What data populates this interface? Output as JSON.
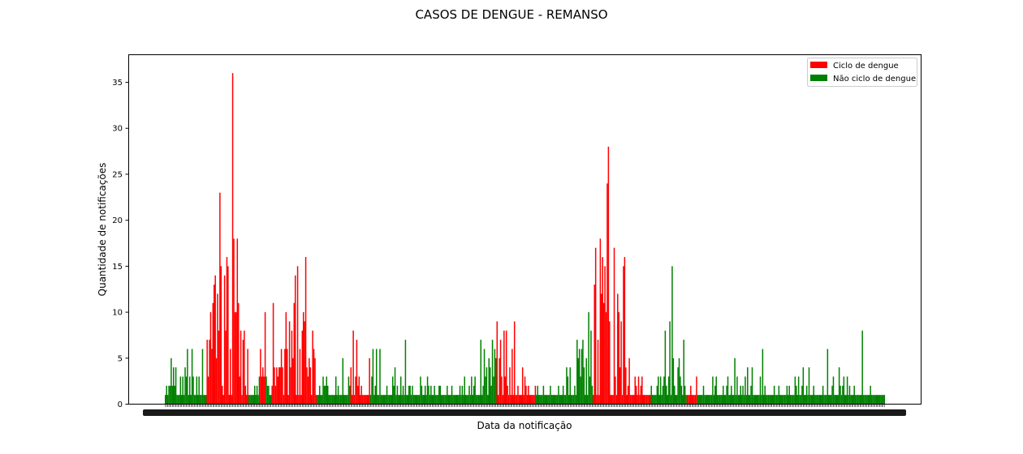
{
  "chart_data": {
    "type": "bar",
    "title": "CASOS DE DENGUE - REMANSO",
    "xlabel": "Data da notificação",
    "ylabel": "Quantidade de notificações",
    "ylim": [
      0,
      38
    ],
    "yticks": [
      0,
      5,
      10,
      15,
      20,
      25,
      30,
      35
    ],
    "grid": false,
    "legend_position": "top-right",
    "series": [
      {
        "name": "Ciclo de dengue",
        "color": "#ff0000"
      },
      {
        "name": "Não ciclo de dengue",
        "color": "#008000"
      }
    ],
    "x_tick_labels_note": "one overlapping, illegible date tick label per bar",
    "values": [
      1,
      2,
      1,
      2,
      2,
      5,
      2,
      4,
      2,
      4,
      1,
      1,
      1,
      3,
      1,
      3,
      1,
      4,
      3,
      6,
      1,
      3,
      1,
      6,
      3,
      1,
      1,
      3,
      1,
      3,
      1,
      1,
      6,
      1,
      1,
      1,
      7,
      3,
      7,
      10,
      6,
      11,
      13,
      14,
      5,
      12,
      8,
      23,
      15,
      2,
      1,
      14,
      8,
      16,
      15,
      1,
      6,
      1,
      36,
      18,
      10,
      10,
      18,
      11,
      3,
      8,
      1,
      7,
      8,
      2,
      1,
      6,
      1,
      1,
      1,
      1,
      1,
      2,
      1,
      2,
      1,
      3,
      6,
      3,
      4,
      3,
      10,
      3,
      2,
      2,
      1,
      1,
      2,
      11,
      4,
      2,
      4,
      3,
      4,
      4,
      6,
      4,
      1,
      6,
      10,
      6,
      1,
      9,
      4,
      8,
      5,
      11,
      14,
      1,
      15,
      1,
      6,
      1,
      8,
      10,
      9,
      16,
      4,
      3,
      5,
      4,
      1,
      8,
      6,
      5,
      1,
      1,
      1,
      2,
      1,
      1,
      3,
      2,
      2,
      3,
      2,
      1,
      1,
      1,
      1,
      1,
      1,
      3,
      1,
      2,
      1,
      1,
      1,
      5,
      1,
      1,
      1,
      1,
      3,
      2,
      4,
      1,
      8,
      1,
      3,
      7,
      2,
      3,
      1,
      2,
      1,
      1,
      1,
      1,
      1,
      1,
      5,
      1,
      3,
      6,
      1,
      2,
      6,
      1,
      1,
      6,
      1,
      1,
      1,
      1,
      1,
      2,
      1,
      1,
      1,
      1,
      3,
      2,
      4,
      1,
      2,
      1,
      1,
      3,
      1,
      2,
      1,
      7,
      1,
      1,
      2,
      2,
      1,
      2,
      1,
      1,
      1,
      1,
      1,
      1,
      3,
      2,
      1,
      1,
      2,
      1,
      3,
      2,
      1,
      2,
      1,
      1,
      2,
      1,
      1,
      1,
      2,
      2,
      1,
      1,
      1,
      1,
      1,
      2,
      1,
      1,
      1,
      2,
      1,
      1,
      1,
      1,
      1,
      1,
      2,
      1,
      2,
      1,
      3,
      1,
      1,
      1,
      2,
      1,
      3,
      1,
      2,
      3,
      1,
      1,
      1,
      1,
      7,
      1,
      2,
      6,
      3,
      4,
      1,
      5,
      4,
      2,
      7,
      3,
      6,
      5,
      9,
      1,
      5,
      7,
      3,
      1,
      8,
      3,
      8,
      2,
      1,
      4,
      1,
      6,
      1,
      9,
      1,
      1,
      2,
      1,
      1,
      1,
      4,
      1,
      3,
      2,
      1,
      2,
      1,
      1,
      1,
      1,
      1,
      2,
      1,
      2,
      1,
      1,
      1,
      1,
      2,
      1,
      1,
      1,
      1,
      1,
      2,
      1,
      1,
      1,
      1,
      1,
      1,
      2,
      1,
      1,
      1,
      2,
      1,
      1,
      4,
      3,
      1,
      4,
      1,
      1,
      1,
      2,
      1,
      7,
      5,
      6,
      3,
      6,
      7,
      4,
      1,
      5,
      1,
      10,
      3,
      8,
      2,
      1,
      13,
      17,
      1,
      7,
      1,
      18,
      12,
      16,
      11,
      15,
      10,
      24,
      28,
      9,
      1,
      1,
      1,
      17,
      3,
      1,
      12,
      10,
      4,
      9,
      1,
      15,
      16,
      4,
      1,
      2,
      5,
      1,
      1,
      1,
      1,
      3,
      2,
      1,
      3,
      1,
      2,
      3,
      1,
      1,
      1,
      1,
      1,
      1,
      1,
      2,
      1,
      1,
      1,
      1,
      2,
      3,
      1,
      3,
      1,
      2,
      3,
      8,
      2,
      1,
      3,
      9,
      1,
      15,
      5,
      2,
      1,
      1,
      4,
      5,
      3,
      2,
      1,
      7,
      2,
      1,
      1,
      1,
      1,
      2,
      1,
      1,
      1,
      1,
      3,
      1,
      1,
      1,
      1,
      1,
      2,
      1,
      1,
      1,
      1,
      1,
      1,
      1,
      3,
      1,
      2,
      3,
      1,
      1,
      1,
      1,
      1,
      2,
      1,
      1,
      2,
      3,
      1,
      1,
      2,
      1,
      1,
      5,
      1,
      3,
      1,
      1,
      2,
      1,
      2,
      1,
      3,
      1,
      4,
      1,
      1,
      2,
      4,
      1,
      1,
      1,
      1,
      1,
      1,
      3,
      1,
      6,
      1,
      2,
      1,
      1,
      1,
      1,
      1,
      1,
      1,
      2,
      1,
      1,
      1,
      2,
      1,
      1,
      1,
      1,
      1,
      1,
      2,
      1,
      2,
      1,
      1,
      1,
      1,
      3,
      2,
      1,
      3,
      1,
      1,
      2,
      4,
      1,
      1,
      2,
      1,
      4,
      1,
      1,
      1,
      2,
      1,
      1,
      1,
      1,
      1,
      1,
      1,
      2,
      1,
      1,
      1,
      6,
      1,
      1,
      1,
      2,
      3,
      1,
      1,
      1,
      1,
      4,
      2,
      1,
      2,
      3,
      1,
      1,
      3,
      1,
      2,
      1,
      1,
      1,
      2,
      1,
      1,
      1,
      1,
      1,
      1,
      8,
      1,
      1,
      1,
      1,
      1,
      1,
      2,
      1,
      1,
      1,
      1,
      1,
      1,
      1,
      1,
      1,
      1,
      1,
      1
    ],
    "cycle_flags": [
      0,
      0,
      0,
      0,
      0,
      0,
      0,
      0,
      0,
      0,
      0,
      0,
      0,
      0,
      0,
      0,
      0,
      0,
      0,
      0,
      0,
      0,
      0,
      0,
      0,
      0,
      0,
      0,
      0,
      0,
      0,
      0,
      0,
      0,
      0,
      0,
      1,
      1,
      1,
      1,
      1,
      1,
      1,
      1,
      1,
      1,
      1,
      1,
      1,
      1,
      1,
      1,
      1,
      1,
      1,
      1,
      1,
      1,
      1,
      1,
      1,
      1,
      1,
      1,
      1,
      1,
      1,
      1,
      1,
      1,
      1,
      1,
      0,
      0,
      0,
      0,
      0,
      0,
      0,
      0,
      0,
      0,
      1,
      1,
      1,
      1,
      1,
      0,
      0,
      0,
      0,
      0,
      1,
      1,
      1,
      1,
      1,
      1,
      1,
      1,
      1,
      1,
      1,
      1,
      1,
      1,
      1,
      1,
      1,
      1,
      1,
      1,
      1,
      1,
      1,
      1,
      1,
      1,
      1,
      1,
      1,
      1,
      1,
      1,
      1,
      1,
      1,
      1,
      1,
      1,
      1,
      0,
      0,
      0,
      0,
      0,
      0,
      0,
      0,
      0,
      0,
      0,
      0,
      0,
      0,
      0,
      0,
      0,
      0,
      0,
      0,
      0,
      0,
      0,
      0,
      0,
      0,
      0,
      0,
      0,
      1,
      1,
      1,
      1,
      1,
      1,
      1,
      1,
      1,
      1,
      1,
      1,
      1,
      1,
      1,
      1,
      1,
      0,
      0,
      0,
      0,
      0,
      0,
      0,
      0,
      0,
      0,
      0,
      0,
      0,
      0,
      0,
      0,
      0,
      0,
      0,
      0,
      0,
      0,
      0,
      0,
      0,
      0,
      0,
      0,
      0,
      0,
      0,
      0,
      0,
      0,
      0,
      0,
      0,
      0,
      0,
      0,
      0,
      0,
      0,
      0,
      0,
      0,
      0,
      0,
      0,
      0,
      0,
      0,
      0,
      0,
      0,
      0,
      0,
      0,
      0,
      0,
      0,
      0,
      0,
      0,
      0,
      0,
      0,
      0,
      0,
      0,
      0,
      0,
      0,
      0,
      0,
      0,
      0,
      0,
      0,
      0,
      0,
      0,
      0,
      0,
      0,
      0,
      0,
      0,
      0,
      0,
      0,
      0,
      0,
      0,
      0,
      0,
      0,
      0,
      0,
      0,
      0,
      0,
      0,
      0,
      0,
      0,
      0,
      0,
      0,
      1,
      1,
      1,
      1,
      1,
      1,
      1,
      1,
      1,
      1,
      1,
      1,
      1,
      1,
      1,
      1,
      1,
      1,
      1,
      1,
      1,
      1,
      1,
      1,
      1,
      1,
      1,
      1,
      1,
      1,
      1,
      1,
      1,
      1,
      0,
      0,
      0,
      0,
      0,
      0,
      0,
      0,
      0,
      0,
      0,
      0,
      0,
      0,
      0,
      0,
      0,
      0,
      0,
      0,
      0,
      0,
      0,
      0,
      0,
      0,
      0,
      0,
      0,
      0,
      0,
      0,
      0,
      0,
      0,
      0,
      0,
      0,
      0,
      0,
      0,
      0,
      0,
      0,
      0,
      0,
      0,
      0,
      0,
      1,
      1,
      1,
      1,
      1,
      1,
      1,
      1,
      1,
      1,
      1,
      1,
      1,
      1,
      1,
      1,
      1,
      1,
      1,
      1,
      1,
      1,
      1,
      1,
      1,
      1,
      1,
      1,
      1,
      1,
      1,
      1,
      1,
      1,
      1,
      1,
      1,
      1,
      1,
      1,
      1,
      1,
      1,
      1,
      1,
      1,
      1,
      1,
      1,
      1,
      0,
      0,
      0,
      0,
      0,
      0,
      0,
      0,
      0,
      0,
      0,
      0,
      0,
      0,
      0,
      0,
      0,
      0,
      0,
      0,
      0,
      0,
      0,
      0,
      0,
      0,
      0,
      0,
      0,
      0,
      0,
      1,
      1,
      1,
      1,
      1,
      1,
      1,
      1,
      1,
      0,
      0,
      0,
      0,
      0,
      0,
      0,
      0,
      0,
      0,
      0,
      0,
      0,
      0,
      0,
      0,
      0,
      0,
      0,
      0,
      0,
      0,
      0,
      0,
      0,
      0,
      0,
      0,
      0,
      0,
      0,
      0,
      0,
      0,
      0,
      0,
      0,
      0,
      0,
      0,
      0,
      0,
      0,
      0,
      0,
      0,
      0,
      0,
      0,
      0,
      0,
      0,
      0,
      0,
      0,
      0,
      0,
      0,
      0,
      0,
      0,
      0,
      0,
      0,
      0,
      0,
      0,
      0,
      0,
      0,
      0,
      0,
      0,
      0,
      0,
      0,
      0,
      0,
      0,
      0,
      0,
      0,
      0,
      0,
      0,
      0,
      0,
      0,
      0,
      0,
      0,
      0,
      0,
      0,
      0,
      0,
      0,
      0,
      0,
      0,
      0,
      0,
      0,
      0,
      0,
      0,
      0,
      0,
      0,
      0,
      0,
      0,
      0,
      0,
      0,
      0,
      0,
      0,
      0,
      0,
      0,
      0,
      0,
      0,
      0,
      0,
      0,
      0,
      0,
      0,
      0,
      0,
      0,
      0,
      0,
      0,
      0,
      0,
      0,
      0,
      0,
      0,
      0,
      0,
      0,
      0,
      0,
      0,
      0,
      0,
      0,
      0,
      0,
      0,
      0,
      0,
      0,
      0,
      0,
      0,
      0,
      0,
      0,
      0,
      0,
      0,
      0,
      0,
      0,
      0,
      0,
      0,
      0,
      0,
      0,
      0,
      0,
      0,
      0,
      0,
      0,
      0,
      0,
      0,
      0,
      0,
      0,
      0,
      0,
      0
    ]
  }
}
